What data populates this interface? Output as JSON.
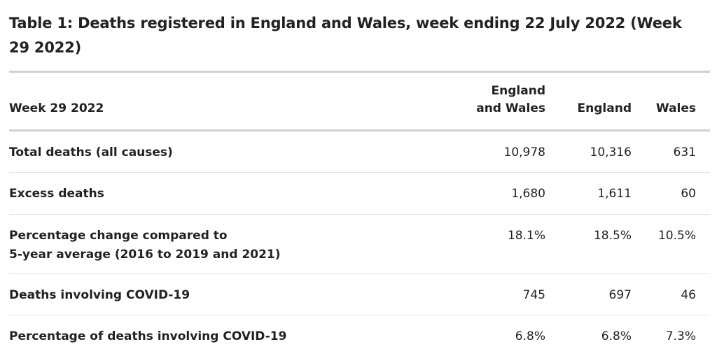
{
  "table": {
    "title": "Table 1: Deaths registered in England and Wales, week ending 22 July 2022 (Week 29 2022)",
    "headers": {
      "col1": "Week 29 2022",
      "col2_line1": "England",
      "col2_line2": "and Wales",
      "col3": "England",
      "col4": "Wales"
    },
    "rows": [
      {
        "label": "Total deaths (all causes)",
        "label_line2": "",
        "england_and_wales": "10,978",
        "england": "10,316",
        "wales": "631"
      },
      {
        "label": "Excess deaths",
        "label_line2": "",
        "england_and_wales": "1,680",
        "england": "1,611",
        "wales": "60"
      },
      {
        "label": "Percentage change compared to",
        "label_line2": "5-year average (2016 to 2019 and 2021)",
        "england_and_wales": "18.1%",
        "england": "18.5%",
        "wales": "10.5%"
      },
      {
        "label": "Deaths involving COVID-19",
        "label_line2": "",
        "england_and_wales": "745",
        "england": "697",
        "wales": "46"
      },
      {
        "label": "Percentage of deaths involving COVID-19",
        "label_line2": "",
        "england_and_wales": "6.8%",
        "england": "6.8%",
        "wales": "7.3%"
      }
    ]
  }
}
